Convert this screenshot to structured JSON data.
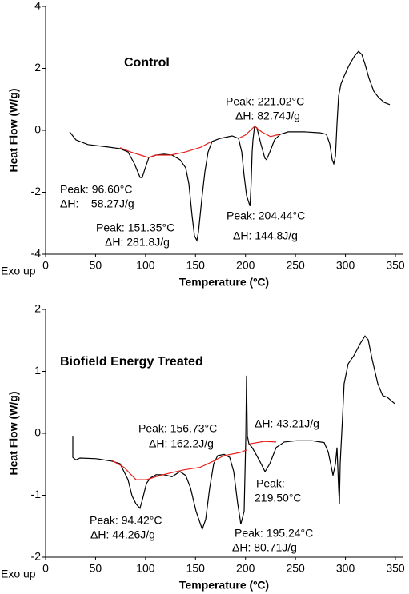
{
  "chart_data": [
    {
      "type": "line",
      "title": "Control",
      "xlabel": "Temperature (ºC)",
      "ylabel": "Heat Flow (W/g)",
      "corner_label": "Exo up",
      "xlim": [
        0,
        350
      ],
      "ylim": [
        -4,
        4
      ],
      "xticks": [
        0,
        50,
        100,
        150,
        200,
        250,
        300,
        350
      ],
      "yticks": [
        -4,
        -2,
        0,
        2,
        4
      ],
      "series": [
        {
          "color": "#000000",
          "x": [
            24,
            30.4,
            42.4,
            62.5,
            74.5,
            82.5,
            88.9,
            94.5,
            96.6,
            99.3,
            103.3,
            110.5,
            118.5,
            126.5,
            134.5,
            140.2,
            143.4,
            146.6,
            149,
            151.35,
            153,
            156.2,
            159.4,
            162.6,
            166.6,
            174.6,
            186.6,
            193,
            196.2,
            198.6,
            201,
            204.44,
            205.6,
            206.6,
            207.4,
            209,
            211.4,
            215.4,
            219.4,
            221.02,
            224.3,
            229,
            234.7,
            242.7,
            258.7,
            274.7,
            281,
            284.3,
            286.7,
            288.3,
            290,
            291.5,
            293.1,
            295.5,
            298.7,
            303.5,
            309.1,
            313.1,
            316.4,
            319.6,
            323.6,
            328.4,
            333.2,
            338.8,
            344.4
          ],
          "values": [
            -0.05,
            -0.31,
            -0.46,
            -0.54,
            -0.59,
            -0.7,
            -1.08,
            -1.52,
            -1.53,
            -1.26,
            -0.88,
            -0.8,
            -0.77,
            -0.8,
            -0.95,
            -1.21,
            -1.73,
            -2.76,
            -3.41,
            -3.56,
            -3.28,
            -2.25,
            -1.34,
            -0.7,
            -0.36,
            -0.26,
            -0.18,
            -0.26,
            -0.7,
            -1.47,
            -2.1,
            -2.45,
            -1.73,
            -0.7,
            -0.31,
            0.13,
            0.08,
            -0.44,
            -0.9,
            -0.95,
            -0.7,
            -0.31,
            -0.13,
            -0.05,
            -0.05,
            -0.08,
            -0.13,
            -0.44,
            -0.95,
            -1.08,
            -0.83,
            0.21,
            1.11,
            1.5,
            1.75,
            2.09,
            2.4,
            2.55,
            2.45,
            2.14,
            1.68,
            1.26,
            1.06,
            0.9,
            0.83
          ]
        },
        {
          "color": "#e8201c",
          "x": [
            74.5,
            85,
            95,
            103,
            110,
            125,
            140,
            155,
            166,
            null,
            193,
            200,
            209,
            216,
            225,
            234
          ],
          "values": [
            -0.56,
            -0.7,
            -0.8,
            -0.88,
            -0.8,
            -0.8,
            -0.7,
            -0.55,
            -0.36,
            null,
            -0.26,
            -0.15,
            0.13,
            -0.05,
            -0.2,
            -0.13
          ]
        }
      ],
      "annotations": [
        "Peak: 221.02°C",
        "ΔH: 82.74J/g",
        "Peak: 96.60°C",
        "ΔH:    58.27J/g",
        "Peak: 151.35°C",
        "ΔH: 281.8J/g",
        "Peak: 204.44°C",
        "ΔH: 144.8J/g"
      ]
    },
    {
      "type": "line",
      "title": "Biofield Energy Treated",
      "xlabel": "Temperature (ºC)",
      "ylabel": "Heat Flow (W/g)",
      "corner_label": "Exo up",
      "xlim": [
        0,
        350
      ],
      "ylim": [
        -2,
        2
      ],
      "xticks": [
        0,
        50,
        100,
        150,
        200,
        250,
        300,
        350
      ],
      "yticks": [
        -2,
        -1,
        0,
        1,
        2
      ],
      "series": [
        {
          "color": "#000000",
          "x": [
            27.2,
            27.2,
            30.4,
            34.4,
            50.5,
            66.5,
            74.5,
            78.5,
            82.5,
            86.5,
            90.5,
            94.42,
            96.9,
            100.9,
            104.9,
            110.5,
            118.5,
            126.5,
            134.5,
            140.2,
            145,
            150.6,
            156.73,
            160.2,
            164.2,
            168.2,
            172.2,
            178.6,
            184.2,
            188.2,
            192.2,
            194.6,
            195.24,
            198.6,
            200.2,
            201,
            201.8,
            203.4,
            206.6,
            210.6,
            214.6,
            219.5,
            224.3,
            230.7,
            238.7,
            250.7,
            266.7,
            278.7,
            282.7,
            285.9,
            287.5,
            290,
            291.5,
            293.1,
            293.9,
            294.7,
            295.5,
            297.1,
            298.7,
            302.7,
            308.3,
            314.8,
            319.6,
            322.8,
            326.8,
            332.4,
            337.2,
            342,
            349.2
          ],
          "values": [
            -0.04,
            -0.39,
            -0.43,
            -0.4,
            -0.41,
            -0.45,
            -0.49,
            -0.62,
            -0.75,
            -1.01,
            -1.14,
            -1.21,
            -1.07,
            -0.81,
            -0.72,
            -0.67,
            -0.67,
            -0.7,
            -0.62,
            -0.68,
            -0.88,
            -1.26,
            -1.55,
            -1.39,
            -0.88,
            -0.49,
            -0.36,
            -0.34,
            -0.39,
            -0.62,
            -1.14,
            -1.39,
            -1.47,
            -1.26,
            -0.1,
            0.93,
            -0.04,
            -0.17,
            -0.23,
            -0.34,
            -0.46,
            -0.62,
            -0.49,
            -0.23,
            -0.14,
            -0.12,
            -0.12,
            -0.15,
            -0.3,
            -0.55,
            -0.68,
            -0.49,
            -0.23,
            -0.88,
            -1.14,
            -0.49,
            -0.23,
            0.28,
            0.8,
            1.12,
            1.25,
            1.45,
            1.57,
            1.51,
            1.19,
            0.8,
            0.61,
            0.58,
            0.48
          ]
        },
        {
          "color": "#e8201c",
          "x": [
            66.5,
            78.5,
            90.5,
            101,
            114.5,
            138.6,
            154.6,
            166.6,
            178.6,
            194.6,
            201,
            null,
            204.2,
            218.6,
            230.7
          ],
          "values": [
            -0.44,
            -0.55,
            -0.75,
            -0.75,
            -0.68,
            -0.59,
            -0.55,
            -0.46,
            -0.36,
            -0.31,
            -0.27,
            null,
            -0.17,
            -0.13,
            -0.14
          ]
        }
      ],
      "annotations": [
        "Peak: 156.73°C",
        "ΔH: 162.2J/g",
        "ΔH: 43.21J/g",
        "Peak:",
        "219.50°C",
        "Peak: 94.42°C",
        "ΔH: 44.26J/g",
        "Peak: 195.24°C",
        "ΔH: 80.71J/g"
      ]
    }
  ]
}
